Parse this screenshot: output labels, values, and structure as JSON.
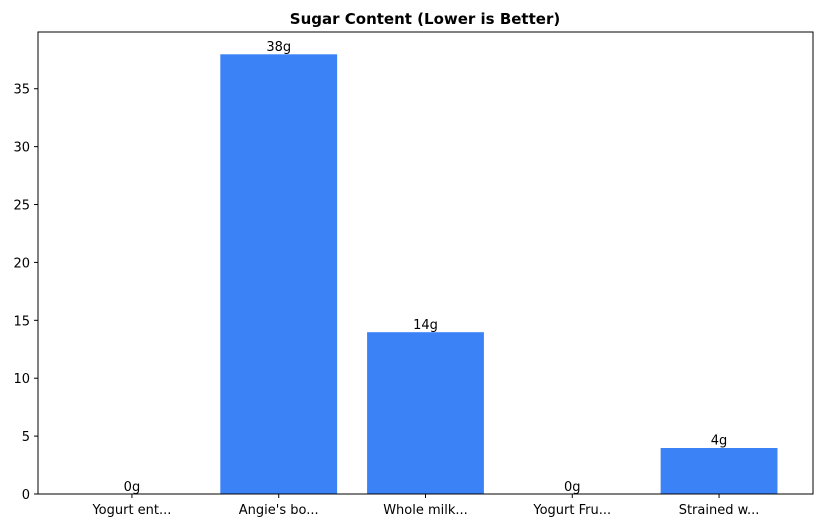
{
  "chart_data": {
    "type": "bar",
    "title": "Sugar Content (Lower is Better)",
    "xlabel": "",
    "ylabel": "",
    "categories": [
      "Yogurt ent...",
      "Angie's bo...",
      "Whole milk...",
      "Yogurt Fru...",
      "Strained w..."
    ],
    "values": [
      0,
      38,
      14,
      0,
      4
    ],
    "data_labels": [
      "0g",
      "38g",
      "14g",
      "0g",
      "4g"
    ],
    "ylim": [
      0,
      39.9
    ],
    "yticks": [
      0,
      5,
      10,
      15,
      20,
      25,
      30,
      35
    ],
    "grid": false,
    "bar_color": "#3b82f6"
  }
}
